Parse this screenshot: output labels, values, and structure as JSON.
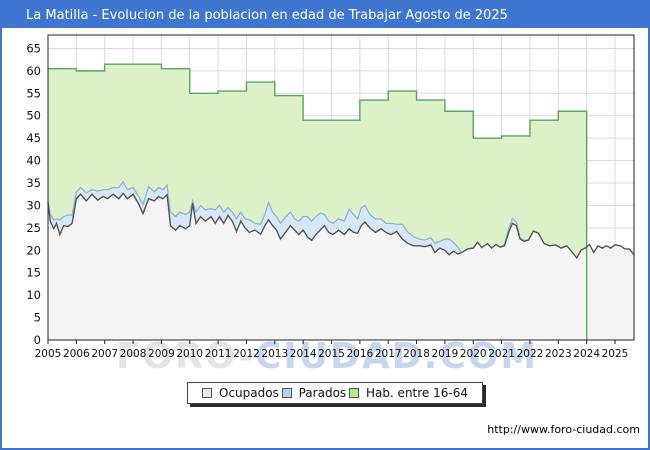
{
  "title": "La Matilla - Evolucion de la poblacion en edad de Trabajar Agosto de 2025",
  "watermark": {
    "part1": "FORO-",
    "part2": "CIUDAD.COM"
  },
  "footer": {
    "url": "http://www.foro-ciudad.com"
  },
  "legend": {
    "items": [
      {
        "label": "Ocupados"
      },
      {
        "label": "Parados"
      },
      {
        "label": "Hab. entre 16-64"
      }
    ]
  },
  "colors": {
    "titlebar": "#3e76d2",
    "page_border": "#3e76d2",
    "grid": "#d9d9d9",
    "plot_border": "#222222",
    "green_fill": "#dcf1c7",
    "green_line": "#5aa465",
    "blue_fill": "#d6e7f8",
    "blue_line": "#8fb2dc",
    "gray_fill": "#f4f4f4",
    "gray_line": "#555555",
    "legend_ocupados_swatch": "#e8e8e8",
    "legend_parados_swatch": "#b3d4f0",
    "legend_hab_swatch": "#b0ee86",
    "watermark_gray": "#e4e4e4",
    "watermark_blue": "#c7d6ee"
  },
  "chart_data": {
    "type": "area",
    "title": "La Matilla - Evolucion de la poblacion en edad de Trabajar Agosto de 2025",
    "xlabel": "",
    "ylabel": "",
    "xlim": [
      2005,
      2025.67
    ],
    "ylim": [
      0,
      68
    ],
    "grid": true,
    "legend_position": "bottom",
    "x_ticks": [
      2005,
      2006,
      2007,
      2008,
      2009,
      2010,
      2011,
      2012,
      2013,
      2014,
      2015,
      2016,
      2017,
      2018,
      2019,
      2020,
      2021,
      2022,
      2023,
      2024,
      2025
    ],
    "y_ticks": [
      0,
      5,
      10,
      15,
      20,
      25,
      30,
      35,
      40,
      45,
      50,
      55,
      60,
      65
    ],
    "series_annual": {
      "name": "Hab. entre 16-64",
      "years": [
        2005,
        2006,
        2007,
        2008,
        2009,
        2010,
        2011,
        2012,
        2013,
        2014,
        2015,
        2016,
        2017,
        2018,
        2019,
        2020,
        2021,
        2022,
        2023
      ],
      "values": [
        60.5,
        60,
        61.5,
        61.5,
        60.5,
        55,
        55.5,
        57.5,
        54.5,
        49,
        49,
        53.5,
        55.5,
        53.5,
        51,
        45,
        45.5,
        49,
        51
      ],
      "ends_at": 2024
    },
    "series_monthly": {
      "names": [
        "Ocupados",
        "Parados"
      ],
      "t": [
        2005.0,
        2005.08,
        2005.2,
        2005.3,
        2005.42,
        2005.55,
        2005.7,
        2005.85,
        2006.0,
        2006.15,
        2006.35,
        2006.55,
        2006.75,
        2006.95,
        2007.1,
        2007.3,
        2007.5,
        2007.65,
        2007.8,
        2008.0,
        2008.2,
        2008.35,
        2008.55,
        2008.75,
        2008.9,
        2009.05,
        2009.2,
        2009.32,
        2009.5,
        2009.65,
        2009.85,
        2010.0,
        2010.1,
        2010.22,
        2010.38,
        2010.55,
        2010.75,
        2010.9,
        2011.05,
        2011.2,
        2011.35,
        2011.5,
        2011.65,
        2011.8,
        2011.95,
        2012.1,
        2012.3,
        2012.5,
        2012.65,
        2012.78,
        2012.92,
        2013.06,
        2013.2,
        2013.38,
        2013.55,
        2013.7,
        2013.85,
        2014.0,
        2014.15,
        2014.3,
        2014.45,
        2014.6,
        2014.75,
        2014.9,
        2015.05,
        2015.25,
        2015.45,
        2015.62,
        2015.78,
        2015.92,
        2016.05,
        2016.18,
        2016.35,
        2016.55,
        2016.75,
        2016.92,
        2017.1,
        2017.3,
        2017.5,
        2017.7,
        2017.9,
        2018.1,
        2018.3,
        2018.5,
        2018.65,
        2018.82,
        2019.0,
        2019.15,
        2019.3,
        2019.45,
        2019.6,
        2019.8,
        2020.0,
        2020.15,
        2020.3,
        2020.5,
        2020.65,
        2020.8,
        2020.95,
        2021.1,
        2021.25,
        2021.38,
        2021.52,
        2021.65,
        2021.8,
        2021.95,
        2022.12,
        2022.3,
        2022.5,
        2022.7,
        2022.9,
        2023.1,
        2023.3,
        2023.5,
        2023.65,
        2023.8,
        2023.95,
        2024.1,
        2024.25,
        2024.4,
        2024.55,
        2024.7,
        2024.85,
        2025.0,
        2025.2,
        2025.35,
        2025.5,
        2025.67
      ],
      "ocupados": [
        30.5,
        26.5,
        24.8,
        26.0,
        23.5,
        25.5,
        25.3,
        26.0,
        31.5,
        32.5,
        31.0,
        32.5,
        31.2,
        32.0,
        31.5,
        32.5,
        31.5,
        32.7,
        31.5,
        32.5,
        30.3,
        28.2,
        31.5,
        31.0,
        32.0,
        31.5,
        32.4,
        25.5,
        24.5,
        25.5,
        24.8,
        25.5,
        30.5,
        26.0,
        27.5,
        26.5,
        27.5,
        26.0,
        27.5,
        26.0,
        27.8,
        26.5,
        24.2,
        26.5,
        25.0,
        24.0,
        24.5,
        23.6,
        25.5,
        26.8,
        25.5,
        24.5,
        22.5,
        24.0,
        25.5,
        24.5,
        23.5,
        24.5,
        23.0,
        22.2,
        23.5,
        24.5,
        25.5,
        24.0,
        23.5,
        24.5,
        23.5,
        24.8,
        24.0,
        23.8,
        25.5,
        26.3,
        25.0,
        24.0,
        24.8,
        24.0,
        23.5,
        24.2,
        22.5,
        21.5,
        21.0,
        21.0,
        20.8,
        21.2,
        19.5,
        20.5,
        20.0,
        19.0,
        19.8,
        19.2,
        19.5,
        20.3,
        20.5,
        21.8,
        20.6,
        21.5,
        20.5,
        21.3,
        20.7,
        21.0,
        24.0,
        26.0,
        25.5,
        22.5,
        22.0,
        22.3,
        24.3,
        23.8,
        21.5,
        21.0,
        21.2,
        20.5,
        21.0,
        19.5,
        18.3,
        20.0,
        20.5,
        21.3,
        19.5,
        21.0,
        20.5,
        21.0,
        20.5,
        21.2,
        21.0,
        20.3,
        20.3,
        19.0
      ],
      "parados": [
        0.5,
        1.5,
        2.0,
        1.0,
        3.3,
        2.0,
        2.6,
        1.8,
        1.5,
        1.5,
        1.8,
        1.0,
        2.0,
        1.5,
        2.0,
        1.5,
        2.5,
        2.6,
        2.0,
        1.5,
        1.7,
        2.0,
        2.7,
        2.0,
        2.0,
        2.0,
        2.1,
        3.0,
        3.0,
        3.0,
        3.2,
        3.0,
        0.5,
        2.5,
        2.5,
        2.5,
        1.8,
        3.0,
        2.5,
        2.5,
        1.7,
        2.0,
        2.8,
        2.0,
        2.0,
        2.8,
        1.5,
        2.2,
        2.5,
        3.9,
        3.0,
        3.0,
        3.5,
        3.5,
        3.0,
        2.5,
        3.0,
        3.0,
        4.5,
        4.3,
        4.0,
        3.8,
        2.5,
        2.5,
        2.5,
        2.5,
        3.0,
        4.3,
        4.0,
        3.2,
        4.0,
        3.7,
        3.0,
        3.0,
        2.2,
        2.0,
        2.5,
        1.6,
        3.3,
        2.5,
        2.0,
        1.5,
        1.5,
        1.6,
        2.0,
        1.5,
        2.5,
        3.5,
        2.0,
        1.5,
        0.0,
        0.0,
        0,
        0,
        0,
        0,
        0,
        0,
        0,
        0.3,
        0.8,
        1.1,
        0.8,
        0.3,
        0.2,
        0,
        0,
        0,
        0,
        0,
        0,
        0,
        0,
        0,
        0,
        0,
        0,
        0,
        0,
        0,
        0,
        0,
        0,
        0,
        0,
        0,
        0,
        0
      ]
    }
  }
}
